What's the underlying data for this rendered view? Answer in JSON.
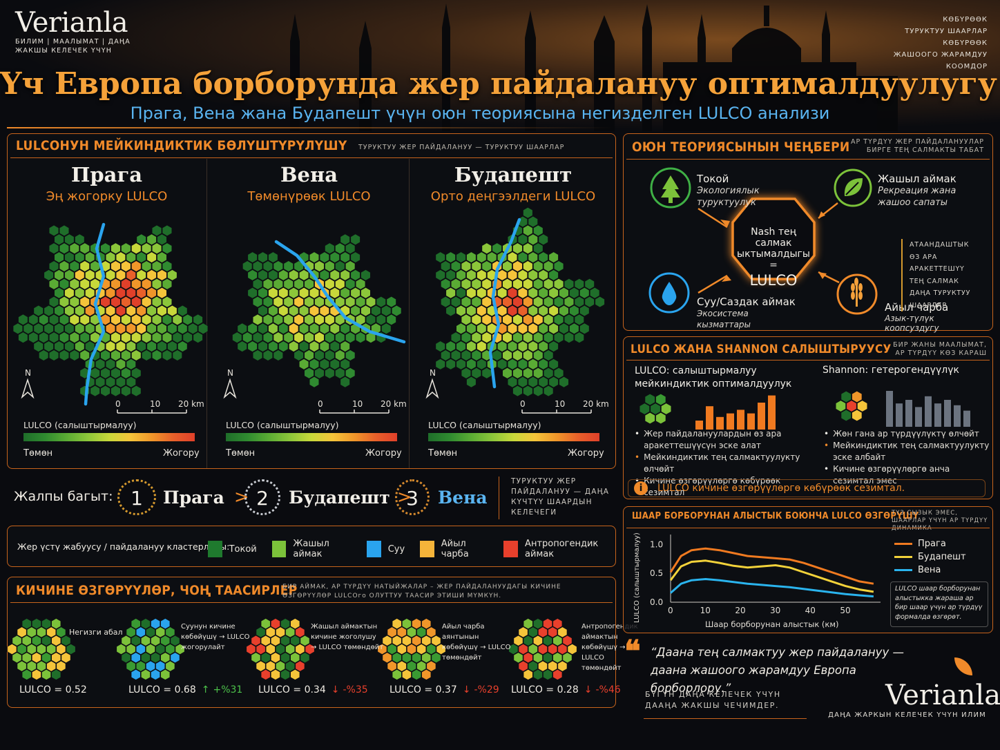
{
  "colors": {
    "accent": "#f08a2a",
    "forest": "#1f7a2e",
    "green": "#7cc23a",
    "water": "#2aa4ee",
    "agri": "#f5b43a",
    "anthro": "#e8402c"
  },
  "brand": {
    "name": "Verianla",
    "tagline": "БИЛИМ | МААЛЫМАТ | ДАҢА ЖАКШЫ КЕЛЕЧЕК ҮЧҮН"
  },
  "top_right": [
    "КӨБҮРӨӨК",
    "ТУРУКТУУ ШААРЛАР",
    "КӨБҮРӨӨК",
    "ЖАШООГО ЖАРАМДУУ",
    "КООМДОР"
  ],
  "title": "Үч Европа борборунда жер пайдалануу оптималдуулугу",
  "subtitle": "Прага, Вена жана Будапешт үчүн оюн теориясына негизделген LULCO анализи",
  "distribution": {
    "title": "LULCOНУН МЕЙКИНДИКТИК БӨЛҮШТҮРҮЛҮШҮ",
    "note": "ТУРУКТУУ ЖЕР ПАЙДАЛАНУУ — ТУРУКТУУ ШААРЛАР",
    "cities": [
      {
        "name": "Прага",
        "level": "Эң жогорку LULCO"
      },
      {
        "name": "Вена",
        "level": "Төмөнүрөөк LULCO"
      },
      {
        "name": "Будапешт",
        "level": "Орто деңгээлдеги LULCO"
      }
    ],
    "north": "N",
    "scale": [
      "0",
      "10",
      "20 km"
    ],
    "legend_title": "LULCO (салыштырмалуу)",
    "low": "Төмөн",
    "high": "Жогору"
  },
  "ranking": {
    "label": "Жалпы багыт:",
    "items": [
      {
        "rank": "1",
        "city": "Прага"
      },
      {
        "rank": "2",
        "city": "Будапешт"
      },
      {
        "rank": "3",
        "city": "Вена"
      }
    ],
    "note": "ТУРУКТУУ ЖЕР ПАЙДАЛАНУУ — ДАҢА КҮЧТҮҮ ШААРДЫН КЕЛЕЧЕГИ"
  },
  "clusters": {
    "label": "Жер үстү жабуусу / пайдалануу кластерлары:",
    "items": [
      "Токой",
      "Жашыл аймак",
      "Суу",
      "Айыл чарба",
      "Антропогендик аймак"
    ]
  },
  "small_changes": {
    "title": "КИЧИНЕ ӨЗГӨРҮҮЛӨР, ЧОҢ ТААСИРЛЕР",
    "note": "БИР АЙМАК, АР ТҮРДҮҮ НАТЫЙЖАЛАР – ЖЕР ПАЙДАЛАНУУДАГЫ КИЧИНЕ ӨЗГӨРҮҮЛӨР LULCOго ОЛУТТУУ ТААСИР ЭТИШИ МҮМКҮН.",
    "items": [
      {
        "label": "Негизги абал",
        "value": "LULCO = 0.52",
        "delta": "",
        "dir": ""
      },
      {
        "label": "Суунун кичине көбөйүшү → LULCO жогорулайт",
        "value": "LULCO = 0.68",
        "delta": "+%31",
        "dir": "up"
      },
      {
        "label": "Жашыл аймактын кичине жоголушу → LULCO төмөндөйт",
        "value": "LULCO = 0.34",
        "delta": "-%35",
        "dir": "down"
      },
      {
        "label": "Айыл чарба аянтынын көбөйүшү → LULCO төмөндөйт",
        "value": "LULCO = 0.37",
        "delta": "-%29",
        "dir": "down"
      },
      {
        "label": "Антропогендик аймактын көбөйүшү → LULCO төмөндөйт",
        "value": "LULCO = 0.28",
        "delta": "-%46",
        "dir": "down"
      }
    ]
  },
  "game": {
    "title": "ОЮН ТЕОРИЯСЫНЫН ЧЕҢБЕРИ",
    "note": "АР ТҮРДҮҮ ЖЕР ПАЙДАЛАНУУЛАР БИРГЕ ТЕҢ САЛМАКТЫ ТАБАТ",
    "players": [
      {
        "name": "Токой",
        "desc": "Экологиялык туруктуулук",
        "icon": "tree-icon"
      },
      {
        "name": "Жашыл аймак",
        "desc": "Рекреация жана жашоо сапаты",
        "icon": "leaf-icon"
      },
      {
        "name": "Суу/Саздак аймак",
        "desc": "Экосистема кызматтары",
        "icon": "water-drop-icon"
      },
      {
        "name": "Айыл чарба",
        "desc": "Азык-түлүк коопсуздугу",
        "icon": "wheat-icon"
      }
    ],
    "center_line1": "Nash тең салмак",
    "center_line2": "ыктымалдыгы =",
    "center_line3": "LULCO",
    "side_notes": [
      "АТААНДАШТЫК",
      "ӨЗ АРА АРАКЕТТЕШҮҮ",
      "ТЕҢ САЛМАК",
      "ДАҢА ТУРУКТУУ",
      "ШААРЛАР"
    ]
  },
  "comparison": {
    "title": "LULCO ЖАНА SHANNON САЛЫШТЫРУУСУ",
    "note": "БИР ЖАНЫ МААЛЫМАТ, АР ТҮРДҮҮ КӨЗ КАРАШ",
    "lulco_title": "LULCO: салыштырмалуу мейкиндиктик оптималдуулук",
    "shannon_title": "Shannon: гетерогендүүлүк",
    "lulco_points": [
      "Жер пайдалануулардын өз ара аракеттешүүсүн эске алат",
      "Мейкиндиктик тең салмактуулукту өлчөйт",
      "Кичине өзгөрүүлөргө көбүрөөк сезимтал"
    ],
    "shannon_points": [
      "Жөн гана ар түрдүүлүктү өлчөйт",
      "Мейкиндиктик тең салмактуулукту эске албайт",
      "Кичине өзгөрүүлөргө анча сезимтал эмес"
    ],
    "footer": "LULCO кичине өзгөрүүлөргө көбүрөөк сезимтал."
  },
  "distance": {
    "title": "ШААР БОРБОРУНАН АЛЫСТЫК БОЮНЧА LULCO ӨЗГӨРҮШҮ",
    "note": "ТҮЗ СЫЗЫК ЭМЕС, ШААРЛАР ҮЧҮН АР ТҮРДҮҮ ДИНАМИКА",
    "caption": "LULCO шаар борборунан алыстыкка жараша ар бир шаар үчүн ар түрдүү формалда өзгөрөт."
  },
  "chart_data": {
    "type": "line",
    "xlabel": "Шаар борборунан алыстык (км)",
    "ylabel": "LULCO (салыштырмалуу)",
    "x_ticks": [
      "0",
      "10",
      "20",
      "30",
      "40",
      "50"
    ],
    "y_ticks": [
      "0.0",
      "0.5",
      "1.0"
    ],
    "xlim": [
      0,
      60
    ],
    "ylim": [
      0,
      1.1
    ],
    "x": [
      0,
      3,
      6,
      10,
      14,
      18,
      22,
      26,
      30,
      34,
      38,
      42,
      46,
      50,
      54,
      58
    ],
    "series": [
      {
        "name": "Прага",
        "color": "#f07a20",
        "values": [
          0.52,
          0.8,
          0.9,
          0.93,
          0.9,
          0.85,
          0.8,
          0.78,
          0.76,
          0.74,
          0.68,
          0.6,
          0.52,
          0.44,
          0.36,
          0.32
        ]
      },
      {
        "name": "Будапешт",
        "color": "#f2d23a",
        "values": [
          0.38,
          0.62,
          0.7,
          0.72,
          0.68,
          0.63,
          0.6,
          0.62,
          0.64,
          0.6,
          0.52,
          0.44,
          0.36,
          0.28,
          0.22,
          0.18
        ]
      },
      {
        "name": "Вена",
        "color": "#2ab4ee",
        "values": [
          0.16,
          0.32,
          0.38,
          0.4,
          0.38,
          0.35,
          0.32,
          0.3,
          0.28,
          0.26,
          0.23,
          0.2,
          0.17,
          0.14,
          0.12,
          0.1
        ]
      }
    ]
  },
  "quote": {
    "text": "“Даана тең салмактуу жер пайдалануу — даана жашоого жарамдуу Европа борборлору.”",
    "sub": "БҮГҮН ДАҢА КЕЛЕЧЕК ҮЧҮН ДААҢА ЖАКШЫ ЧЕЧИМДЕР.",
    "brand_tag": "ДАҢА ЖАРКЫН КЕЛЕЧЕК ҮЧҮН ИЛИМ"
  }
}
